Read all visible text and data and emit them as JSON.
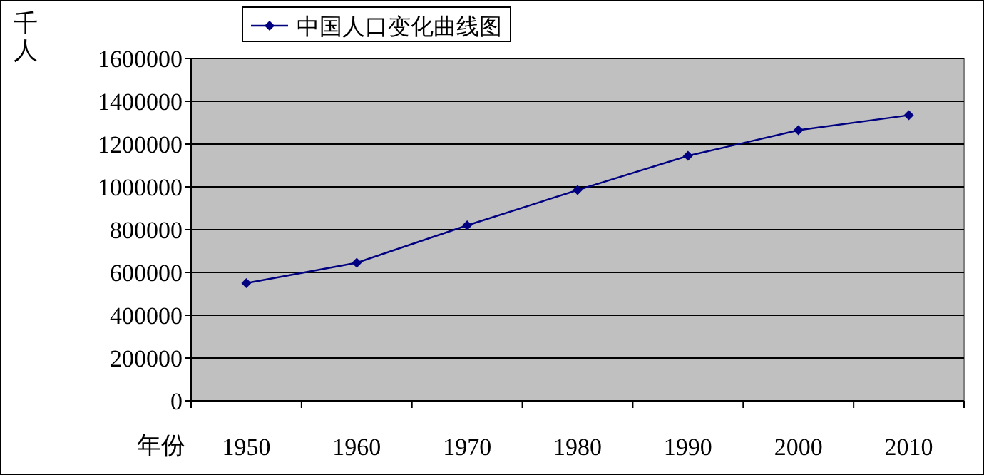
{
  "chart_data": {
    "type": "line",
    "xlabel": "年份",
    "ylabel": "千人",
    "categories": [
      "1950",
      "1960",
      "1970",
      "1980",
      "1990",
      "2000",
      "2010"
    ],
    "series": [
      {
        "name": "中国人口变化曲线图",
        "color": "#000080",
        "values": [
          550000,
          645000,
          820000,
          985000,
          1145000,
          1265000,
          1335000
        ]
      }
    ],
    "ylim": [
      0,
      1600000
    ],
    "yticks": [
      0,
      200000,
      400000,
      600000,
      800000,
      1000000,
      1200000,
      1400000,
      1600000
    ],
    "grid": "y",
    "legend": "top left",
    "marker": "diamond",
    "line_style": "solid"
  }
}
